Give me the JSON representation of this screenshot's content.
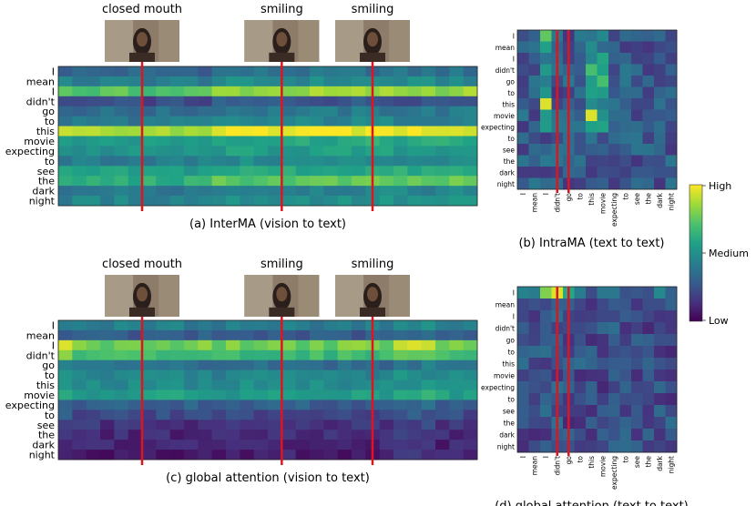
{
  "colors": {
    "viridis": [
      "#440154",
      "#46327e",
      "#365c8d",
      "#277f8e",
      "#1fa187",
      "#4ac16d",
      "#a0da39",
      "#fde725"
    ],
    "marker": "#e0141e",
    "photo_bg": "#8a7a68"
  },
  "words": [
    "I",
    "mean",
    "I",
    "didn't",
    "go",
    "to",
    "this",
    "movie",
    "expecting",
    "to",
    "see",
    "the",
    "dark",
    "night"
  ],
  "colorbar": {
    "high": "High",
    "medium": "Medium",
    "low": "Low"
  },
  "chart_data": [
    {
      "type": "heatmap",
      "title": "(a)  InterMA (vision to text)",
      "ylabel_ticks": [
        "I",
        "mean",
        "I",
        "didn't",
        "go",
        "to",
        "this",
        "movie",
        "expecting",
        "to",
        "see",
        "the",
        "dark",
        "night"
      ],
      "columns": 30,
      "row_levels": [
        0.32,
        0.42,
        0.72,
        0.22,
        0.35,
        0.4,
        0.86,
        0.55,
        0.5,
        0.42,
        0.55,
        0.62,
        0.4,
        0.45
      ],
      "peak_columns": [
        11,
        12,
        13,
        14,
        15,
        16,
        17,
        18,
        19,
        20,
        21,
        22,
        23,
        24,
        25,
        26,
        27,
        28,
        29
      ],
      "frame_markers": [
        {
          "label": "closed mouth",
          "column": 6
        },
        {
          "label": "smiling",
          "column": 16
        },
        {
          "label": "smiling",
          "column": 22.5
        }
      ],
      "value_range": [
        0,
        1
      ]
    },
    {
      "type": "heatmap",
      "title": "(b)  IntraMA (text to text)",
      "ylabel_ticks": [
        "I",
        "mean",
        "I",
        "didn't",
        "go",
        "to",
        "this",
        "movie",
        "expecting",
        "to",
        "see",
        "the",
        "dark",
        "night"
      ],
      "xlabel_ticks": [
        "I",
        "mean",
        "I",
        "didn't",
        "go",
        "to",
        "this",
        "movie",
        "expecting",
        "to",
        "see",
        "the",
        "dark",
        "night"
      ],
      "hot_cells": [
        {
          "row": 0,
          "col": 2,
          "value": 0.75
        },
        {
          "row": 6,
          "col": 2,
          "value": 0.95
        },
        {
          "row": 7,
          "col": 6,
          "value": 0.95
        },
        {
          "row": 3,
          "col": 6,
          "value": 0.7
        },
        {
          "row": 4,
          "col": 7,
          "value": 0.7
        }
      ],
      "marker_columns": [
        3,
        4
      ],
      "value_range": [
        0,
        1
      ]
    },
    {
      "type": "heatmap",
      "title": "(c)  global attention (vision to text)",
      "ylabel_ticks": [
        "I",
        "mean",
        "I",
        "didn't",
        "go",
        "to",
        "this",
        "movie",
        "expecting",
        "to",
        "see",
        "the",
        "dark",
        "night"
      ],
      "columns": 30,
      "row_levels": [
        0.42,
        0.28,
        0.78,
        0.68,
        0.35,
        0.45,
        0.48,
        0.55,
        0.3,
        0.22,
        0.15,
        0.12,
        0.1,
        0.08
      ],
      "peak_columns": [
        0,
        24,
        25,
        26
      ],
      "frame_markers": [
        {
          "label": "closed mouth",
          "column": 6
        },
        {
          "label": "smiling",
          "column": 16
        },
        {
          "label": "smiling",
          "column": 22.5
        }
      ],
      "value_range": [
        0,
        1
      ]
    },
    {
      "type": "heatmap",
      "title": "(d)  global attention (text to text)",
      "ylabel_ticks": [
        "I",
        "mean",
        "I",
        "didn't",
        "go",
        "to",
        "this",
        "movie",
        "expecting",
        "to",
        "see",
        "the",
        "dark",
        "night"
      ],
      "xlabel_ticks": [
        "I",
        "mean",
        "I",
        "didn't",
        "go",
        "to",
        "this",
        "movie",
        "expecting",
        "to",
        "see",
        "the",
        "dark",
        "night"
      ],
      "hot_cells": [
        {
          "row": 0,
          "col": 3,
          "value": 0.95
        },
        {
          "row": 0,
          "col": 2,
          "value": 0.8
        },
        {
          "row": 0,
          "col": 4,
          "value": 0.6
        }
      ],
      "marker_columns": [
        3,
        4
      ],
      "value_range": [
        0,
        1
      ]
    }
  ]
}
